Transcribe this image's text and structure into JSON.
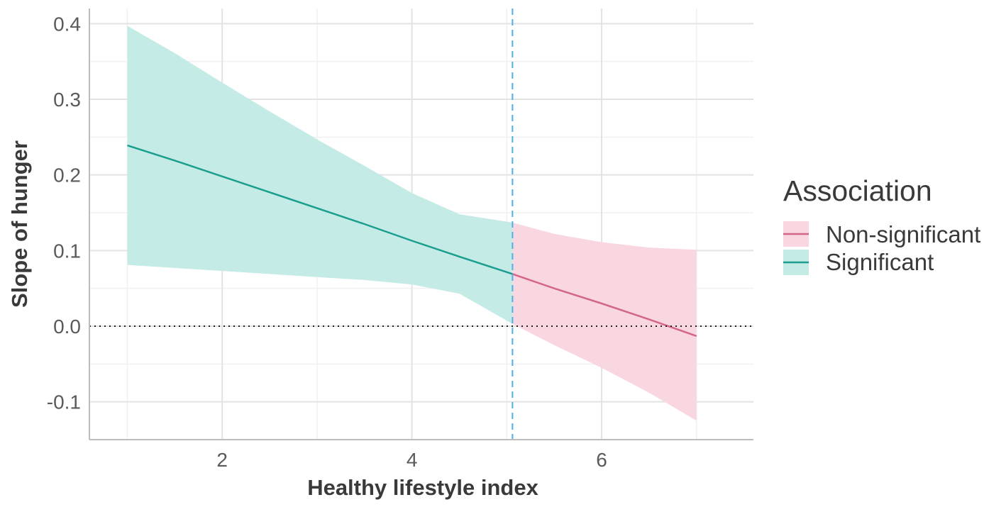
{
  "chart_data": {
    "type": "line",
    "xlabel": "Healthy lifestyle index",
    "ylabel": "Slope of hunger",
    "xlim": [
      0.6,
      7.6
    ],
    "ylim": [
      -0.15,
      0.42
    ],
    "x_ticks": [
      2,
      4,
      6
    ],
    "x_tick_labels": [
      "2",
      "4",
      "6"
    ],
    "y_ticks": [
      -0.1,
      0.0,
      0.1,
      0.2,
      0.3,
      0.4
    ],
    "y_tick_labels": [
      "-0.1",
      "0.0",
      "0.1",
      "0.2",
      "0.3",
      "0.4"
    ],
    "reference_lines": {
      "horizontal_dotted_y": 0.0,
      "vertical_dashed_x": 5.06
    },
    "legend": {
      "title": "Association",
      "placement": "right",
      "entries": [
        "Non-significant",
        "Significant"
      ]
    },
    "series": [
      {
        "name": "Significant",
        "color": "#1a9e8f",
        "fill": "#c5ebe6",
        "x": [
          1.0,
          1.5,
          2.0,
          2.5,
          3.0,
          3.5,
          4.0,
          4.5,
          5.06
        ],
        "y": [
          0.239,
          0.219,
          0.198,
          0.177,
          0.156,
          0.135,
          0.113,
          0.092,
          0.069
        ],
        "lower": [
          0.081,
          0.077,
          0.073,
          0.069,
          0.065,
          0.061,
          0.055,
          0.043,
          0.003
        ],
        "upper": [
          0.397,
          0.361,
          0.322,
          0.284,
          0.247,
          0.212,
          0.176,
          0.148,
          0.137
        ]
      },
      {
        "name": "Non-significant",
        "color": "#d4668a",
        "fill": "#f8d7e0",
        "x": [
          5.06,
          5.5,
          6.0,
          6.5,
          7.0
        ],
        "y": [
          0.069,
          0.05,
          0.03,
          0.009,
          -0.013
        ],
        "lower": [
          0.003,
          -0.025,
          -0.055,
          -0.088,
          -0.125
        ],
        "upper": [
          0.137,
          0.122,
          0.111,
          0.104,
          0.101
        ]
      }
    ]
  }
}
